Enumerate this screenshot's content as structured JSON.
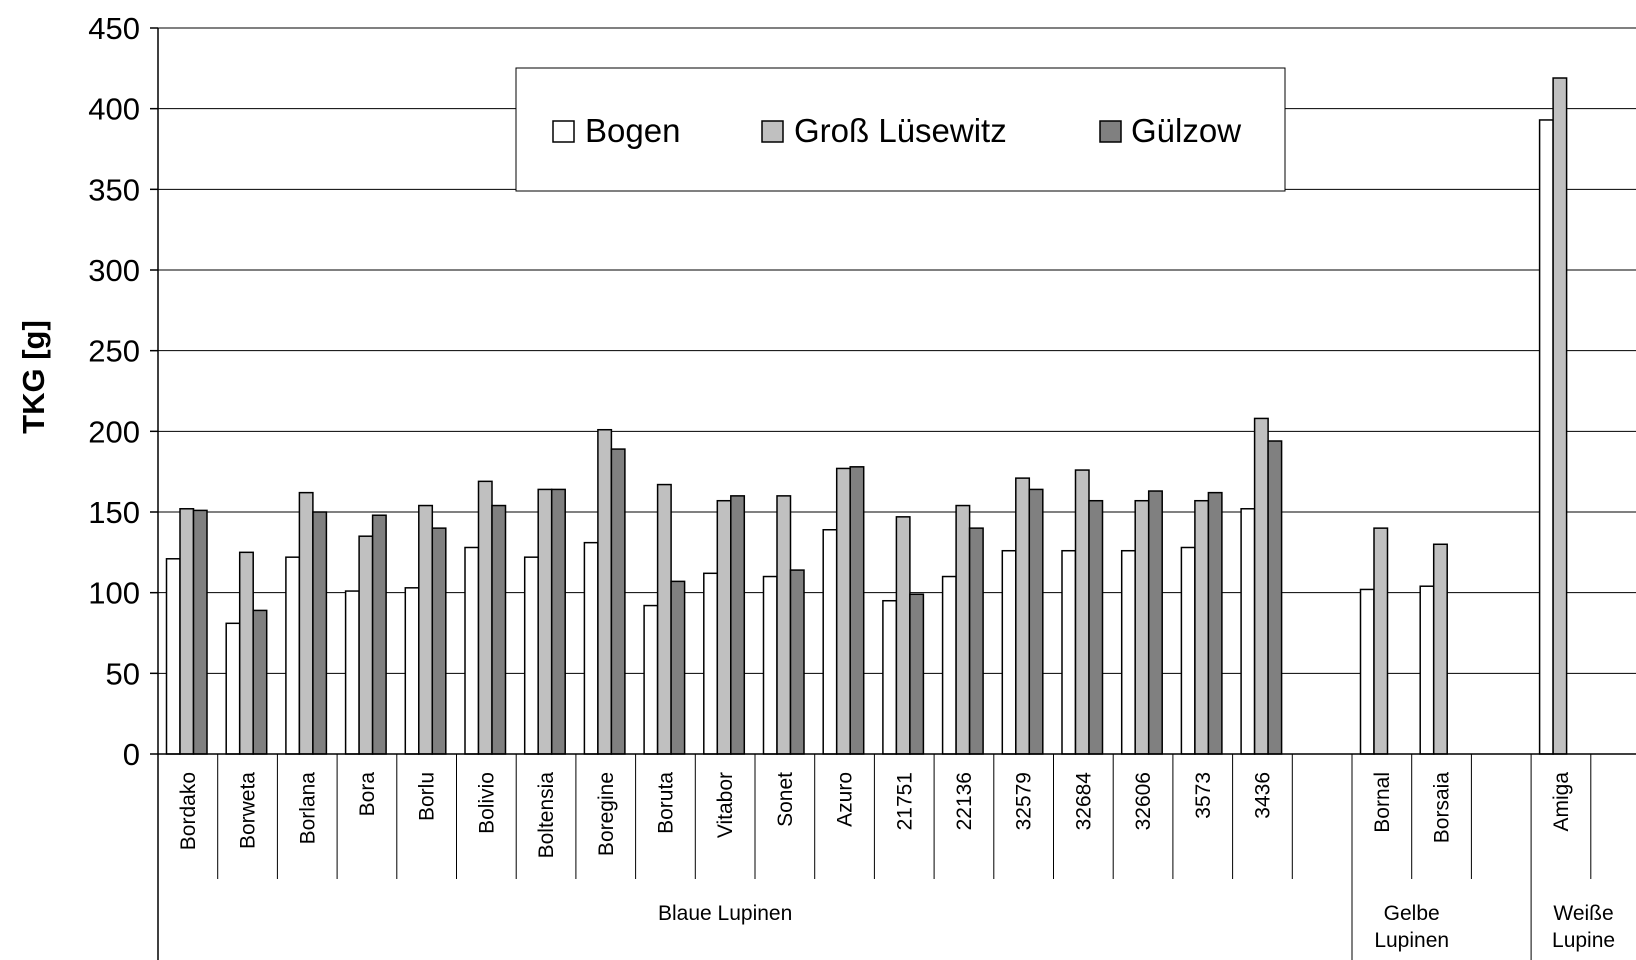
{
  "chart_data": {
    "type": "bar",
    "title": "",
    "xlabel": "",
    "ylabel": "TKG [g]",
    "ylim": [
      0,
      450
    ],
    "yticks": [
      0,
      50,
      100,
      150,
      200,
      250,
      300,
      350,
      400,
      450
    ],
    "grid": true,
    "legend_position": "top-center",
    "categories": [
      "Bordako",
      "Borweta",
      "Borlana",
      "Bora",
      "Borlu",
      "Bolivio",
      "Boltensia",
      "Boregine",
      "Boruta",
      "Vitabor",
      "Sonet",
      "Azuro",
      "21751",
      "22136",
      "32579",
      "32684",
      "32606",
      "3573",
      "3436",
      "",
      "Bornal",
      "Borsaia",
      "",
      "Amiga",
      ""
    ],
    "groups": [
      {
        "label": "Blaue Lupinen",
        "start": 0,
        "end": 19
      },
      {
        "label": "Gelbe Lupinen",
        "start": 20,
        "end": 22
      },
      {
        "label": "Weiße Lupine",
        "start": 23,
        "end": 25
      }
    ],
    "series": [
      {
        "name": "Bogen",
        "color": "#ffffff",
        "values": [
          121,
          81,
          122,
          101,
          103,
          128,
          122,
          131,
          92,
          112,
          110,
          139,
          95,
          110,
          126,
          126,
          126,
          128,
          152,
          null,
          102,
          104,
          null,
          393,
          null
        ]
      },
      {
        "name": "Groß Lüsewitz",
        "color": "#c0c0c0",
        "values": [
          152,
          125,
          162,
          135,
          154,
          169,
          164,
          201,
          167,
          157,
          160,
          177,
          147,
          154,
          171,
          176,
          157,
          157,
          208,
          null,
          140,
          130,
          null,
          419,
          null
        ]
      },
      {
        "name": "Gülzow",
        "color": "#808080",
        "values": [
          151,
          89,
          150,
          148,
          140,
          154,
          164,
          189,
          107,
          160,
          114,
          178,
          99,
          140,
          164,
          157,
          163,
          162,
          194,
          null,
          null,
          null,
          null,
          null,
          null
        ]
      }
    ]
  }
}
